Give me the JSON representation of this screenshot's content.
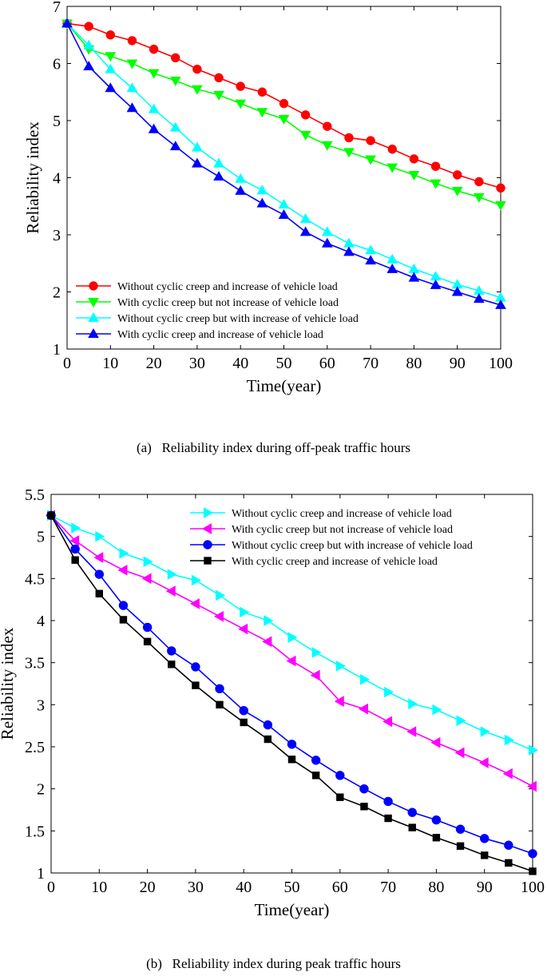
{
  "figures": [
    {
      "caption": "(a)   Reliability index during off-peak traffic hours"
    },
    {
      "caption": "(b)   Reliability index during peak traffic hours"
    }
  ],
  "chart_data": [
    {
      "type": "line",
      "title": "",
      "xlabel": "Time(year)",
      "ylabel": "Reliability index",
      "xlim": [
        0,
        100
      ],
      "ylim": [
        1,
        7
      ],
      "xticks": [
        0,
        10,
        20,
        30,
        40,
        50,
        60,
        70,
        80,
        90,
        100
      ],
      "yticks": [
        1,
        2,
        3,
        4,
        5,
        6,
        7
      ],
      "ytick_labels": [
        "1",
        "2",
        "3",
        "4",
        "5",
        "6",
        "7"
      ],
      "legend_position": "lower-left",
      "grid": false,
      "x": [
        0,
        5,
        10,
        15,
        20,
        25,
        30,
        35,
        40,
        45,
        50,
        55,
        60,
        65,
        70,
        75,
        80,
        85,
        90,
        95,
        100
      ],
      "series": [
        {
          "name": "Without cyclic creep and increase of vehicle load",
          "color": "#ff0000",
          "marker": "circle",
          "values": [
            6.7,
            6.65,
            6.5,
            6.4,
            6.25,
            6.1,
            5.9,
            5.75,
            5.6,
            5.5,
            5.3,
            5.1,
            4.9,
            4.7,
            4.65,
            4.5,
            4.33,
            4.2,
            4.05,
            3.93,
            3.82
          ]
        },
        {
          "name": "With cyclic creep but not increase of vehicle load",
          "color": "#00ff00",
          "marker": "triangle-down",
          "values": [
            6.7,
            6.25,
            6.13,
            6.0,
            5.83,
            5.7,
            5.55,
            5.45,
            5.3,
            5.15,
            5.03,
            4.75,
            4.57,
            4.45,
            4.32,
            4.18,
            4.05,
            3.9,
            3.77,
            3.66,
            3.52
          ]
        },
        {
          "name": "Without cyclic creep but with increase of vehicle load",
          "color": "#00ffff",
          "marker": "triangle-up",
          "values": [
            6.7,
            6.32,
            5.9,
            5.57,
            5.2,
            4.88,
            4.53,
            4.25,
            3.98,
            3.78,
            3.53,
            3.28,
            3.05,
            2.85,
            2.73,
            2.57,
            2.4,
            2.27,
            2.13,
            2.02,
            1.9
          ]
        },
        {
          "name": "With cyclic creep and increase of vehicle load",
          "color": "#0000ff",
          "marker": "triangle-up",
          "values": [
            6.7,
            5.95,
            5.57,
            5.22,
            4.85,
            4.55,
            4.25,
            4.02,
            3.77,
            3.55,
            3.35,
            3.05,
            2.85,
            2.7,
            2.55,
            2.4,
            2.25,
            2.12,
            2.0,
            1.88,
            1.77
          ]
        }
      ]
    },
    {
      "type": "line",
      "title": "",
      "xlabel": "Time(year)",
      "ylabel": "Reliability index",
      "xlim": [
        0,
        100
      ],
      "ylim": [
        1,
        5.5
      ],
      "xticks": [
        0,
        10,
        20,
        30,
        40,
        50,
        60,
        70,
        80,
        90,
        100
      ],
      "yticks": [
        1,
        1.5,
        2,
        2.5,
        3,
        3.5,
        4,
        4.5,
        5,
        5.5
      ],
      "ytick_labels": [
        "1",
        "1.5",
        "2",
        "2.5",
        "3",
        "3.5",
        "4",
        "4.5",
        "5",
        "5.5"
      ],
      "legend_position": "upper-right",
      "grid": false,
      "x": [
        0,
        5,
        10,
        15,
        20,
        25,
        30,
        35,
        40,
        45,
        50,
        55,
        60,
        65,
        70,
        75,
        80,
        85,
        90,
        95,
        100
      ],
      "series": [
        {
          "name": "Without cyclic creep and increase of vehicle load",
          "color": "#00ffff",
          "marker": "triangle-right",
          "values": [
            5.25,
            5.1,
            5.0,
            4.8,
            4.7,
            4.55,
            4.48,
            4.3,
            4.1,
            4.0,
            3.8,
            3.62,
            3.46,
            3.3,
            3.15,
            3.01,
            2.94,
            2.81,
            2.68,
            2.58,
            2.46
          ]
        },
        {
          "name": "With cyclic creep but not increase of vehicle load",
          "color": "#ff00ff",
          "marker": "triangle-left",
          "values": [
            5.25,
            4.95,
            4.75,
            4.6,
            4.5,
            4.35,
            4.2,
            4.05,
            3.9,
            3.75,
            3.52,
            3.35,
            3.04,
            2.95,
            2.8,
            2.68,
            2.55,
            2.43,
            2.31,
            2.18,
            2.03
          ]
        },
        {
          "name": " Without cyclic creep but with increase of vehicle load",
          "color": "#0000ff",
          "marker": "circle",
          "values": [
            5.25,
            4.85,
            4.55,
            4.18,
            3.92,
            3.64,
            3.45,
            3.19,
            2.93,
            2.76,
            2.53,
            2.34,
            2.16,
            2.0,
            1.85,
            1.72,
            1.63,
            1.52,
            1.41,
            1.33,
            1.23
          ]
        },
        {
          "name": "With cyclic creep and increase of vehicle load",
          "color": "#000000",
          "marker": "square",
          "values": [
            5.25,
            4.72,
            4.32,
            4.01,
            3.75,
            3.48,
            3.23,
            3.0,
            2.79,
            2.59,
            2.35,
            2.16,
            1.9,
            1.79,
            1.65,
            1.54,
            1.42,
            1.32,
            1.21,
            1.12,
            1.02
          ]
        }
      ]
    }
  ]
}
